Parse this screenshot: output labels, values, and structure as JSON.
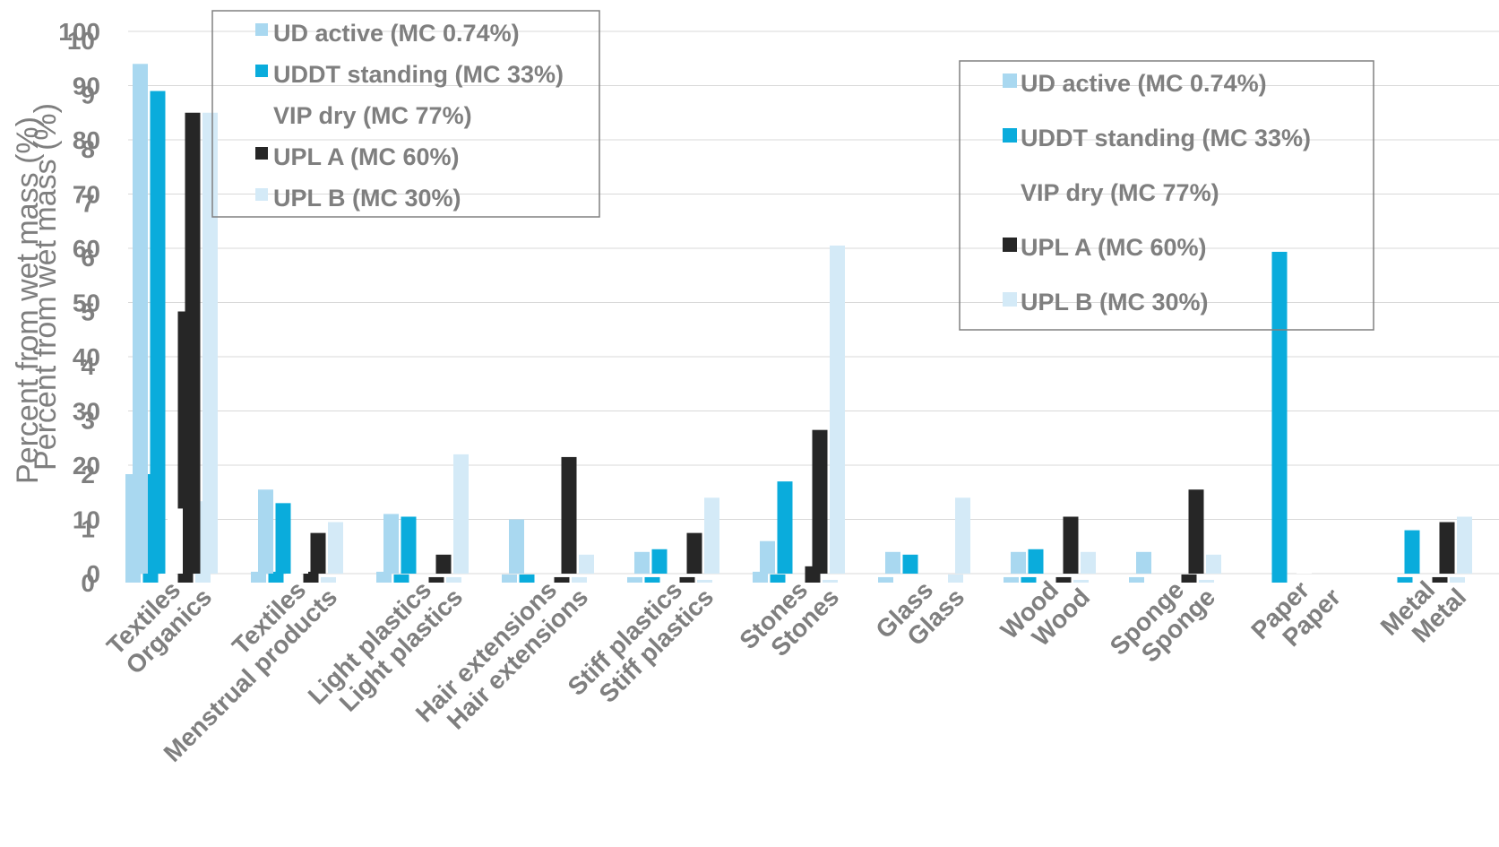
{
  "chart_data": [
    {
      "type": "bar",
      "categories": [
        "Organics",
        "Menstrual products",
        "Light plastics",
        "Hair extensions",
        "Stiff plastics",
        "Stones",
        "Glass",
        "Wood",
        "Sponge",
        "Paper",
        "Metal"
      ],
      "ylabel": "Percent from wet mass (%)",
      "ylim": [
        0,
        100
      ],
      "yticks": [
        0,
        10,
        20,
        30,
        40,
        50,
        60,
        70,
        80,
        90,
        100
      ],
      "grid": true,
      "legend_position": "top-left",
      "series": [
        {
          "name": "UD active (MC 0.74%)",
          "color": "#a9d8f0",
          "values": [
            94,
            15.5,
            11,
            10,
            4,
            6,
            4,
            4,
            4,
            0,
            0
          ]
        },
        {
          "name": "UDDT standing (MC 33%)",
          "color": "#0aacdc",
          "values": [
            89,
            13,
            10.5,
            0,
            4.5,
            17,
            3.5,
            4.5,
            0,
            0,
            8
          ]
        },
        {
          "name": "VIP dry (MC 77%)",
          "color": "#ffffff",
          "values": [
            12,
            3,
            0,
            0,
            0,
            0,
            0,
            0,
            0,
            4,
            0
          ]
        },
        {
          "name": "UPL A (MC 60%)",
          "color": "#262626",
          "values": [
            85,
            7.5,
            3.5,
            21.5,
            7.5,
            26.5,
            0,
            10.5,
            15.5,
            0,
            9.5
          ]
        },
        {
          "name": "UPL B (MC 30%)",
          "color": "#d4eaf7",
          "values": [
            85,
            9.5,
            22,
            3.5,
            14,
            60.5,
            14,
            4,
            3.5,
            0,
            10.5
          ]
        }
      ]
    },
    {
      "type": "bar",
      "categories": [
        "Textiles",
        "Textiles",
        "Light plastics",
        "Hair extensions",
        "Stiff plastics",
        "Stones",
        "Glass",
        "Wood",
        "Sponge",
        "Paper",
        "Metal"
      ],
      "ylabel": "Percent from wet mass (%)",
      "ylim": [
        0,
        10
      ],
      "yticks": [
        0,
        1,
        2,
        3,
        4,
        5,
        6,
        7,
        8,
        9,
        10
      ],
      "grid": false,
      "legend_position": "top-right",
      "series": [
        {
          "name": "UD active (MC 0.74%)",
          "color": "#a9d8f0",
          "values": [
            2,
            0.2,
            0.2,
            0.15,
            0.1,
            0.2,
            0.1,
            0.1,
            0.1,
            0,
            0
          ]
        },
        {
          "name": "UDDT standing (MC 33%)",
          "color": "#0aacdc",
          "values": [
            2,
            0.2,
            0.15,
            0.15,
            0.1,
            0.15,
            0,
            0.1,
            0,
            6.1,
            0.1
          ]
        },
        {
          "name": "VIP dry (MC 77%)",
          "color": "#ffffff",
          "values": [
            1.1,
            0.3,
            0,
            0,
            0,
            0,
            0,
            0,
            0,
            0,
            0
          ]
        },
        {
          "name": "UPL A (MC 60%)",
          "color": "#262626",
          "values": [
            5,
            0.2,
            0.1,
            0.1,
            0.1,
            0.3,
            0,
            0.1,
            0.15,
            0,
            0.1
          ]
        },
        {
          "name": "UPL B (MC 30%)",
          "color": "#d4eaf7",
          "values": [
            1.5,
            0.1,
            0.1,
            0.1,
            0.05,
            0.05,
            0.15,
            0.05,
            0.05,
            0,
            0.1
          ]
        }
      ]
    }
  ]
}
